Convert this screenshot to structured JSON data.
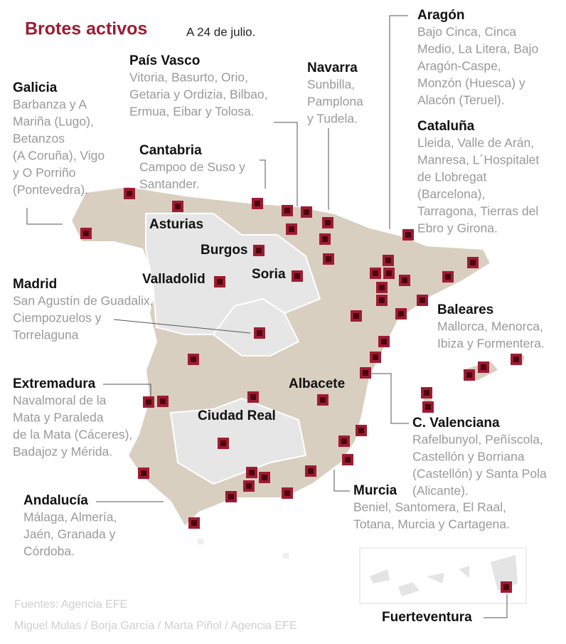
{
  "header": {
    "title": "Brotes activos",
    "date": "A 24 de julio."
  },
  "regions": [
    {
      "name": "Galicia",
      "lines": [
        "Barbanza y A",
        "Mariña (Lugo),",
        "Betanzos",
        "(A Coruña), Vigo",
        "y O Porriño",
        "(Pontevedra)."
      ]
    },
    {
      "name": "País Vasco",
      "lines": [
        "Vitoria, Basurto, Orio,",
        "Getaria y Ordizia, Bilbao,",
        "Ermua, Eibar y Tolosa."
      ]
    },
    {
      "name": "Navarra",
      "lines": [
        "Sunbilla,",
        "Pamplona",
        "y Tudela."
      ]
    },
    {
      "name": "Aragón",
      "lines": [
        "Bajo Cinca, Cinca",
        "Medio, La Litera, Bajo",
        "Aragón-Caspe,",
        "Monzón (Huesca) y",
        "Alacón (Teruel)."
      ]
    },
    {
      "name": "Cataluña",
      "lines": [
        "Lleida, Valle de Arán,",
        "Manresa, L´Hospitalet",
        "de Llobregat",
        "(Barcelona),",
        "Tarragona, Tierras del",
        "Ebro y Girona."
      ]
    },
    {
      "name": "Cantabria",
      "lines": [
        "Campoo de Suso y",
        "Santander."
      ]
    },
    {
      "name": "Madrid",
      "lines": [
        "San Agustín de Guadalix,",
        "Ciempozuelos y",
        "Torrelaguna"
      ]
    },
    {
      "name": "Extremadura",
      "lines": [
        "Navalmoral de la",
        "Mata y Paraleda",
        "de la Mata (Cáceres),",
        "Badajoz y Mérida."
      ]
    },
    {
      "name": "Andalucía",
      "lines": [
        "Málaga, Almería,",
        "Jaén, Granada y",
        "Córdoba."
      ]
    },
    {
      "name": "Baleares",
      "lines": [
        "Mallorca, Menorca,",
        "Ibiza y Formentera."
      ]
    },
    {
      "name": "C. Valenciana",
      "lines": [
        "Rafelbunyol, Peñíscola,",
        "Castellón y Borriana",
        "(Castellón) y Santa Pola",
        "(Alicante)."
      ]
    },
    {
      "name": "Murcia",
      "lines": [
        "Beniel, Santomera, El Raal,",
        "Totana, Murcia y Cartagena."
      ]
    },
    {
      "name": "Fuerteventura",
      "lines": []
    }
  ],
  "places": [
    "Asturias",
    "Burgos",
    "Valladolid",
    "Soria",
    "Albacete",
    "Ciudad Real"
  ],
  "sources": [
    "Fuentes: Agencia EFE",
    "Miguel Mulas / Borja García / Marta Piñol / Agencia EFE"
  ]
}
